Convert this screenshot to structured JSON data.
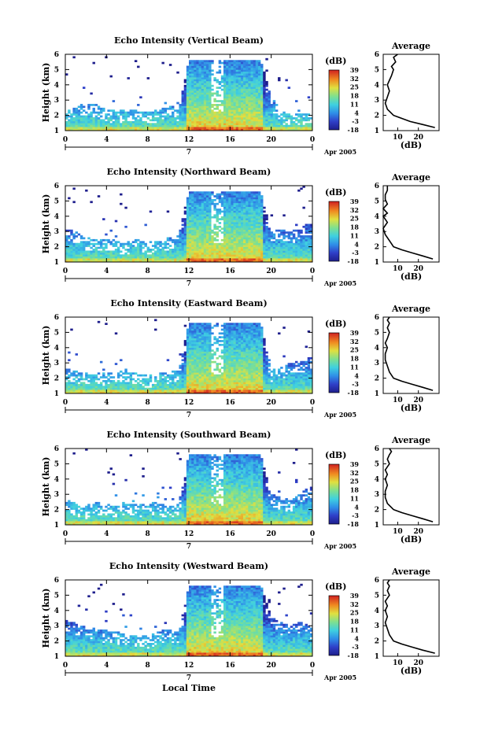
{
  "figure": {
    "xlabel": "Local Time",
    "date_label": "Apr 2005",
    "day_label": "7",
    "colorbar_unit": "(dB)",
    "colorbar_ticks": [
      "-18",
      "-3",
      "4",
      "11",
      "18",
      "25",
      "32",
      "39"
    ],
    "avg_title": "Average",
    "avg_xlabel": "(dB)"
  },
  "chart_data": [
    {
      "type": "heatmap",
      "title": "Echo Intensity (Vertical Beam)",
      "ylabel": "Height (km)",
      "xlim": [
        0,
        24
      ],
      "ylim": [
        1,
        6
      ],
      "x_ticks": [
        "0",
        "4",
        "8",
        "12",
        "16",
        "20",
        "0"
      ],
      "y_ticks": [
        "1",
        "2",
        "3",
        "4",
        "5",
        "6"
      ],
      "colorbar": {
        "unit": "(dB)",
        "range": [
          -18,
          39
        ],
        "ticks": [
          "-18",
          "-3",
          "4",
          "11",
          "18",
          "25",
          "32",
          "39"
        ]
      },
      "echo_top_km": [
        2.2,
        2.6,
        2.8,
        2.7,
        2.4,
        2.3,
        2.4,
        2.3,
        2.2,
        2.4,
        2.7,
        2.4,
        5.6,
        5.6,
        5.6,
        5.6,
        5.6,
        5.6,
        5.6,
        5.6,
        3.2,
        2.3,
        2.0,
        2.2,
        2.1
      ],
      "profile": {
        "title": "Average",
        "xlabel": "(dB)",
        "x_ticks": [
          "10",
          "20"
        ],
        "y_ticks": [
          "1",
          "2",
          "3",
          "4",
          "5",
          "6"
        ],
        "x": [
          28,
          22,
          16,
          12,
          8,
          5,
          4,
          5,
          6,
          5,
          6,
          7,
          8,
          7,
          9,
          8,
          10
        ],
        "y": [
          1.2,
          1.4,
          1.6,
          1.8,
          2.0,
          2.4,
          2.8,
          3.2,
          3.6,
          4.0,
          4.3,
          4.6,
          5.0,
          5.2,
          5.5,
          5.8,
          6.0
        ]
      }
    },
    {
      "type": "heatmap",
      "title": "Echo Intensity (Northward Beam)",
      "ylabel": "Height (km)",
      "xlim": [
        0,
        24
      ],
      "ylim": [
        1,
        6
      ],
      "x_ticks": [
        "0",
        "4",
        "8",
        "12",
        "16",
        "20",
        "0"
      ],
      "y_ticks": [
        "1",
        "2",
        "3",
        "4",
        "5",
        "6"
      ],
      "colorbar": {
        "unit": "(dB)",
        "range": [
          -18,
          39
        ],
        "ticks": [
          "-18",
          "-3",
          "4",
          "11",
          "18",
          "25",
          "32",
          "39"
        ]
      },
      "echo_top_km": [
        3.2,
        3.0,
        2.6,
        2.5,
        2.6,
        2.4,
        2.2,
        2.5,
        2.3,
        2.4,
        2.6,
        2.8,
        5.6,
        5.6,
        5.6,
        5.6,
        5.6,
        5.6,
        5.6,
        5.6,
        3.0,
        3.2,
        3.0,
        3.4,
        3.5
      ],
      "profile": {
        "title": "Average",
        "xlabel": "(dB)",
        "x_ticks": [
          "10",
          "20"
        ],
        "y_ticks": [
          "1",
          "2",
          "3",
          "4",
          "5",
          "6"
        ],
        "x": [
          27,
          22,
          17,
          12,
          8,
          6,
          4,
          3,
          5,
          3,
          5,
          3,
          5,
          4,
          4,
          5,
          5
        ],
        "y": [
          1.2,
          1.4,
          1.6,
          1.8,
          2.0,
          2.4,
          2.8,
          3.2,
          3.6,
          4.0,
          4.2,
          4.5,
          4.8,
          5.1,
          5.4,
          5.7,
          6.0
        ]
      }
    },
    {
      "type": "heatmap",
      "title": "Echo Intensity (Eastward Beam)",
      "ylabel": "Height (km)",
      "xlim": [
        0,
        24
      ],
      "ylim": [
        1,
        6
      ],
      "x_ticks": [
        "0",
        "4",
        "8",
        "12",
        "16",
        "20",
        "0"
      ],
      "y_ticks": [
        "1",
        "2",
        "3",
        "4",
        "5",
        "6"
      ],
      "colorbar": {
        "unit": "(dB)",
        "range": [
          -18,
          39
        ],
        "ticks": [
          "-18",
          "-3",
          "4",
          "11",
          "18",
          "25",
          "32",
          "39"
        ]
      },
      "echo_top_km": [
        2.6,
        2.5,
        2.4,
        2.4,
        2.3,
        2.4,
        2.6,
        2.3,
        2.2,
        2.3,
        2.4,
        2.6,
        5.6,
        5.6,
        5.6,
        5.6,
        5.6,
        5.6,
        5.6,
        5.6,
        2.6,
        2.8,
        3.0,
        3.2,
        3.4
      ],
      "profile": {
        "title": "Average",
        "xlabel": "(dB)",
        "x_ticks": [
          "10",
          "20"
        ],
        "y_ticks": [
          "1",
          "2",
          "3",
          "4",
          "5",
          "6"
        ],
        "x": [
          27,
          22,
          17,
          12,
          8,
          6,
          5,
          4,
          4,
          5,
          4,
          5,
          6,
          5,
          6,
          5,
          6
        ],
        "y": [
          1.2,
          1.4,
          1.6,
          1.8,
          2.0,
          2.4,
          2.8,
          3.2,
          3.6,
          4.0,
          4.3,
          4.6,
          5.0,
          5.3,
          5.6,
          5.8,
          6.0
        ]
      }
    },
    {
      "type": "heatmap",
      "title": "Echo Intensity (Southward Beam)",
      "ylabel": "Height (km)",
      "xlim": [
        0,
        24
      ],
      "ylim": [
        1,
        6
      ],
      "x_ticks": [
        "0",
        "4",
        "8",
        "12",
        "16",
        "20",
        "0"
      ],
      "y_ticks": [
        "1",
        "2",
        "3",
        "4",
        "5",
        "6"
      ],
      "colorbar": {
        "unit": "(dB)",
        "range": [
          -18,
          39
        ],
        "ticks": [
          "-18",
          "-3",
          "4",
          "11",
          "18",
          "25",
          "32",
          "39"
        ]
      },
      "echo_top_km": [
        2.7,
        2.4,
        2.2,
        2.5,
        2.4,
        2.2,
        2.5,
        2.3,
        2.4,
        2.5,
        2.2,
        2.4,
        5.6,
        5.6,
        5.6,
        5.6,
        5.6,
        5.6,
        5.6,
        5.6,
        3.0,
        2.8,
        2.6,
        3.2,
        3.5
      ],
      "profile": {
        "title": "Average",
        "xlabel": "(dB)",
        "x_ticks": [
          "10",
          "20"
        ],
        "y_ticks": [
          "1",
          "2",
          "3",
          "4",
          "5",
          "6"
        ],
        "x": [
          27,
          22,
          17,
          12,
          8,
          5,
          4,
          4,
          5,
          4,
          5,
          4,
          6,
          5,
          6,
          7,
          6
        ],
        "y": [
          1.2,
          1.4,
          1.6,
          1.8,
          2.0,
          2.4,
          2.8,
          3.2,
          3.6,
          4.0,
          4.3,
          4.6,
          5.0,
          5.3,
          5.6,
          5.8,
          6.0
        ]
      }
    },
    {
      "type": "heatmap",
      "title": "Echo Intensity (Westward Beam)",
      "ylabel": "Height (km)",
      "xlim": [
        0,
        24
      ],
      "ylim": [
        1,
        6
      ],
      "x_ticks": [
        "0",
        "4",
        "8",
        "12",
        "16",
        "20",
        "0"
      ],
      "y_ticks": [
        "1",
        "2",
        "3",
        "4",
        "5",
        "6"
      ],
      "colorbar": {
        "unit": "(dB)",
        "range": [
          -18,
          39
        ],
        "ticks": [
          "-18",
          "-3",
          "4",
          "11",
          "18",
          "25",
          "32",
          "39"
        ]
      },
      "echo_top_km": [
        3.4,
        3.2,
        2.9,
        2.8,
        2.7,
        2.6,
        2.4,
        2.5,
        2.3,
        2.6,
        2.8,
        2.5,
        5.6,
        5.6,
        5.6,
        5.6,
        5.6,
        5.6,
        5.6,
        5.6,
        3.6,
        3.2,
        3.0,
        3.4,
        2.8
      ],
      "profile": {
        "title": "Average",
        "xlabel": "(dB)",
        "x_ticks": [
          "10",
          "20"
        ],
        "y_ticks": [
          "1",
          "2",
          "3",
          "4",
          "5",
          "6"
        ],
        "x": [
          28,
          22,
          17,
          12,
          8,
          6,
          5,
          4,
          5,
          4,
          5,
          4,
          6,
          5,
          6,
          5,
          6
        ],
        "y": [
          1.2,
          1.4,
          1.6,
          1.8,
          2.0,
          2.4,
          2.8,
          3.2,
          3.6,
          4.0,
          4.3,
          4.6,
          5.0,
          5.3,
          5.6,
          5.8,
          6.0
        ]
      }
    }
  ]
}
